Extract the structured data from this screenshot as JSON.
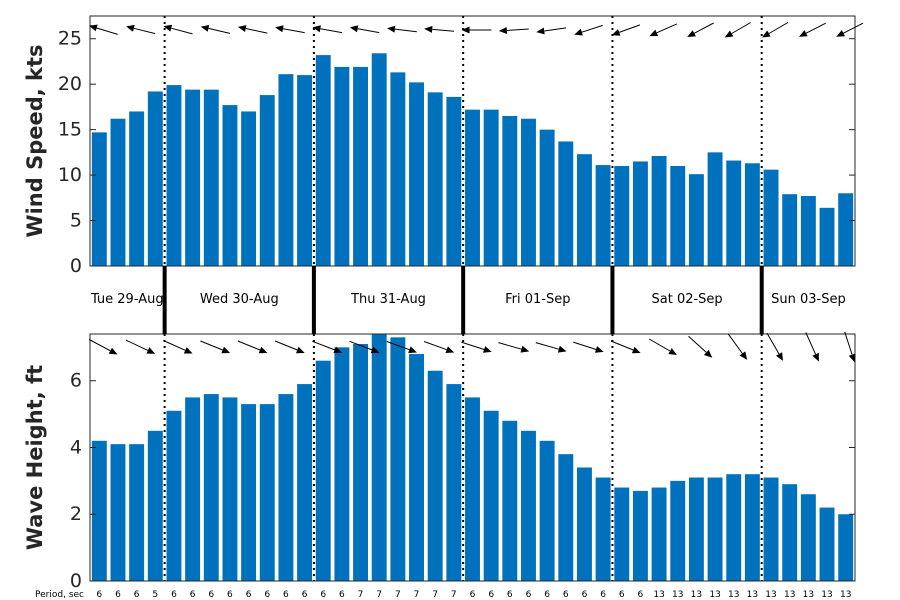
{
  "chart_data": [
    {
      "type": "bar",
      "ylabel": "Wind Speed, kts",
      "ylim": [
        0,
        27.5
      ],
      "yticks": [
        0,
        5,
        10,
        15,
        20,
        25
      ],
      "color": "#0072BD",
      "values": [
        14.7,
        16.2,
        17.0,
        19.2,
        19.9,
        19.4,
        19.4,
        17.7,
        17.0,
        18.8,
        21.1,
        21.0,
        23.2,
        21.9,
        21.9,
        23.4,
        21.3,
        20.2,
        19.1,
        18.6,
        17.2,
        17.2,
        16.5,
        16.2,
        15.0,
        13.7,
        12.3,
        11.1,
        11.0,
        11.5,
        12.1,
        11.0,
        10.1,
        12.5,
        11.6,
        11.3,
        10.6,
        7.9,
        7.7,
        6.4,
        8.0
      ],
      "direction_arrows": "from east-southeast, pointing west-northwest",
      "grid": false
    },
    {
      "type": "bar",
      "ylabel": "Wave Height, ft",
      "ylim": [
        0,
        7.4
      ],
      "yticks": [
        0,
        2,
        4,
        6
      ],
      "color": "#0072BD",
      "values": [
        4.2,
        4.1,
        4.1,
        4.5,
        5.1,
        5.5,
        5.6,
        5.5,
        5.3,
        5.3,
        5.6,
        5.9,
        6.6,
        7.0,
        7.1,
        7.4,
        7.3,
        6.8,
        6.3,
        5.9,
        5.5,
        5.1,
        4.8,
        4.5,
        4.2,
        3.8,
        3.4,
        3.1,
        2.8,
        2.7,
        2.8,
        3.0,
        3.1,
        3.1,
        3.2,
        3.2,
        3.1,
        2.9,
        2.6,
        2.2,
        2.0
      ],
      "periods_label": "Period, sec",
      "periods": [
        6,
        6,
        6,
        5,
        6,
        6,
        6,
        6,
        6,
        6,
        6,
        6,
        6,
        6,
        7,
        7,
        7,
        7,
        7,
        7,
        6,
        6,
        6,
        6,
        6,
        6,
        6,
        6,
        6,
        6,
        13,
        13,
        13,
        13,
        13,
        13,
        13,
        13,
        13,
        13,
        13
      ],
      "direction_arrows": "heading east-southeast, steepening to southeast",
      "grid": false
    }
  ],
  "days": [
    "Tue 29-Aug",
    "Wed 30-Aug",
    "Thu 31-Aug",
    "Fri 01-Sep",
    "Sat 02-Sep",
    "Sun 03-Sep"
  ],
  "day_start_index": [
    0,
    4,
    12,
    20,
    28,
    36
  ]
}
